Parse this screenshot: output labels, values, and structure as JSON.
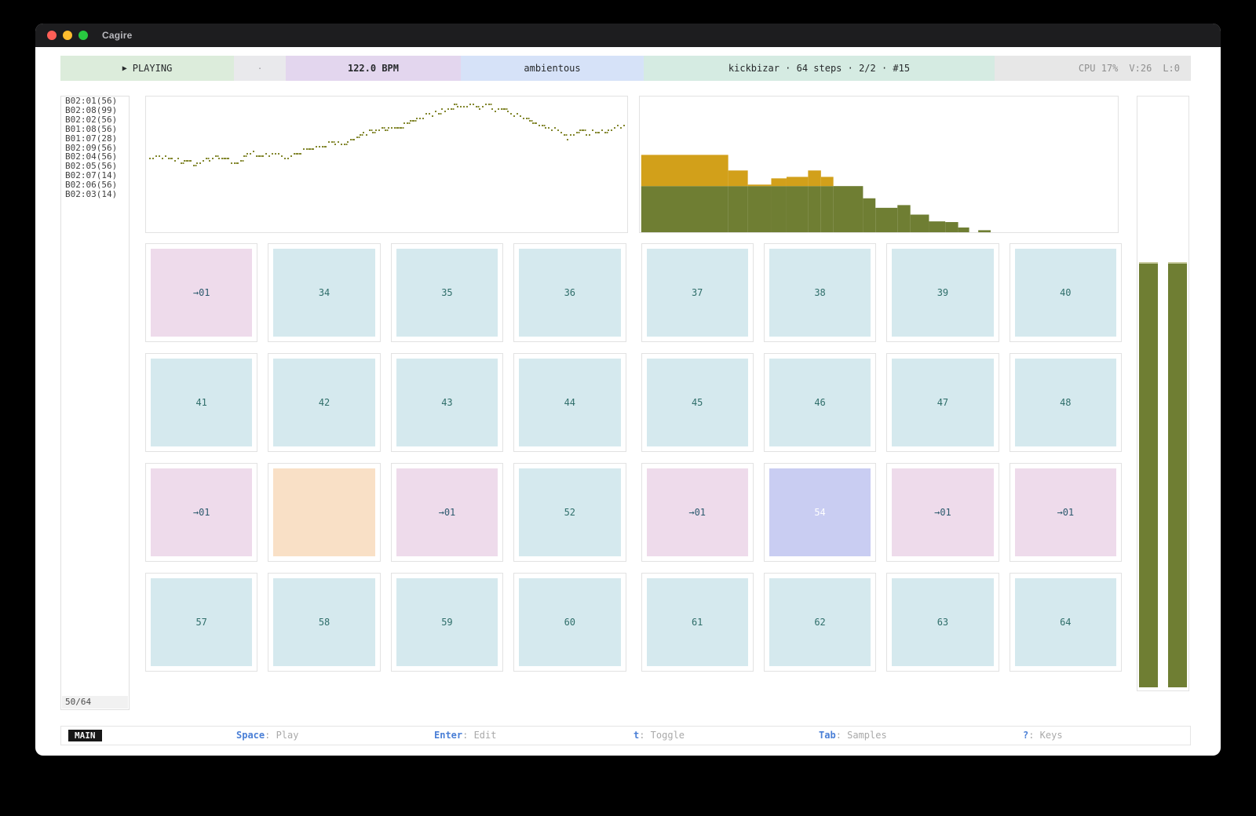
{
  "window": {
    "title": "Cagire"
  },
  "top_bar": {
    "transport": {
      "icon": "▶",
      "label": "PLAYING"
    },
    "record_dot": "·",
    "bpm": "122.0 BPM",
    "pack": "ambientous",
    "pattern": "kickbizar · 64 steps · 2/2 · #15",
    "cpu": "CPU 17%",
    "voices": "V:26",
    "latency": "L:0"
  },
  "sidebar": {
    "items": [
      "B02:01(56)",
      "B02:08(99)",
      "B02:02(56)",
      "B01:08(56)",
      "B01:07(28)",
      "B02:09(56)",
      "B02:04(56)",
      "B02:05(56)",
      "B02:07(14)",
      "B02:06(56)",
      "B02:03(14)"
    ],
    "counter": "50/64"
  },
  "grid": {
    "cells": [
      {
        "label": "→01",
        "type": "jump"
      },
      {
        "label": "34",
        "type": "step"
      },
      {
        "label": "35",
        "type": "step"
      },
      {
        "label": "36",
        "type": "step"
      },
      {
        "label": "37",
        "type": "step"
      },
      {
        "label": "38",
        "type": "step"
      },
      {
        "label": "39",
        "type": "step"
      },
      {
        "label": "40",
        "type": "step"
      },
      {
        "label": "41",
        "type": "step"
      },
      {
        "label": "42",
        "type": "step"
      },
      {
        "label": "43",
        "type": "step"
      },
      {
        "label": "44",
        "type": "step"
      },
      {
        "label": "45",
        "type": "step"
      },
      {
        "label": "46",
        "type": "step"
      },
      {
        "label": "47",
        "type": "step"
      },
      {
        "label": "48",
        "type": "step"
      },
      {
        "label": "→01",
        "type": "jump"
      },
      {
        "label": "",
        "type": "accent"
      },
      {
        "label": "→01",
        "type": "jump"
      },
      {
        "label": "52",
        "type": "step"
      },
      {
        "label": "→01",
        "type": "jump"
      },
      {
        "label": "54",
        "type": "cursor"
      },
      {
        "label": "→01",
        "type": "jump"
      },
      {
        "label": "→01",
        "type": "jump"
      },
      {
        "label": "57",
        "type": "step"
      },
      {
        "label": "58",
        "type": "step"
      },
      {
        "label": "59",
        "type": "step"
      },
      {
        "label": "60",
        "type": "step"
      },
      {
        "label": "61",
        "type": "step"
      },
      {
        "label": "62",
        "type": "step"
      },
      {
        "label": "63",
        "type": "step"
      },
      {
        "label": "64",
        "type": "step"
      }
    ]
  },
  "status_bar": {
    "mode": "MAIN",
    "hints": [
      {
        "key": "Space",
        "label": "Play"
      },
      {
        "key": "Enter",
        "label": "Edit"
      },
      {
        "key": "t",
        "label": "Toggle"
      },
      {
        "key": "Tab",
        "label": "Samples"
      },
      {
        "key": "?",
        "label": "Keys"
      }
    ]
  },
  "chart_data": [
    {
      "type": "scatter",
      "name": "pattern-curve",
      "x_range": [
        0,
        1
      ],
      "y_range": [
        0,
        1
      ],
      "y_is_fraction_from_top": true,
      "curve_y": [
        0.45,
        0.43,
        0.46,
        0.47,
        0.5,
        0.475,
        0.44,
        0.475,
        0.46,
        0.4,
        0.44,
        0.41,
        0.445,
        0.42,
        0.37,
        0.38,
        0.33,
        0.35,
        0.31,
        0.27,
        0.25,
        0.22,
        0.23,
        0.18,
        0.15,
        0.12,
        0.09,
        0.07,
        0.055,
        0.06,
        0.075,
        0.095,
        0.115,
        0.15,
        0.185,
        0.23,
        0.25,
        0.29,
        0.25,
        0.27,
        0.25,
        0.23,
        0.2
      ],
      "grid": false,
      "legend": false
    },
    {
      "type": "bar",
      "name": "sample-histogram",
      "stacked": true,
      "series_names": [
        "green",
        "gold"
      ],
      "bins": [
        {
          "x0": 0.003,
          "x1": 0.185,
          "green": 0.34,
          "gold": 0.23
        },
        {
          "x0": 0.185,
          "x1": 0.226,
          "green": 0.34,
          "gold": 0.115
        },
        {
          "x0": 0.226,
          "x1": 0.275,
          "green": 0.34,
          "gold": 0.011
        },
        {
          "x0": 0.275,
          "x1": 0.307,
          "green": 0.34,
          "gold": 0.057
        },
        {
          "x0": 0.307,
          "x1": 0.352,
          "green": 0.34,
          "gold": 0.068
        },
        {
          "x0": 0.352,
          "x1": 0.379,
          "green": 0.34,
          "gold": 0.115
        },
        {
          "x0": 0.379,
          "x1": 0.405,
          "green": 0.34,
          "gold": 0.068
        },
        {
          "x0": 0.405,
          "x1": 0.467,
          "green": 0.34,
          "gold": 0
        },
        {
          "x0": 0.467,
          "x1": 0.493,
          "green": 0.25,
          "gold": 0
        },
        {
          "x0": 0.493,
          "x1": 0.539,
          "green": 0.18,
          "gold": 0
        },
        {
          "x0": 0.539,
          "x1": 0.566,
          "green": 0.2,
          "gold": 0
        },
        {
          "x0": 0.566,
          "x1": 0.605,
          "green": 0.13,
          "gold": 0
        },
        {
          "x0": 0.605,
          "x1": 0.639,
          "green": 0.08,
          "gold": 0
        },
        {
          "x0": 0.639,
          "x1": 0.666,
          "green": 0.075,
          "gold": 0
        },
        {
          "x0": 0.666,
          "x1": 0.689,
          "green": 0.035,
          "gold": 0
        },
        {
          "x0": 0.708,
          "x1": 0.734,
          "green": 0.015,
          "gold": 0
        }
      ]
    },
    {
      "type": "meter",
      "name": "level-meters",
      "values": [
        0.72,
        0.72
      ]
    }
  ],
  "colors": {
    "accent_green": "#6f7e33",
    "accent_gold": "#d2a01a",
    "dot_olive": "#83872e",
    "seg_green": "#dcecdb",
    "seg_purple": "#e3d6ee",
    "seg_blue": "#d6e2f8",
    "seg_mint": "#d5ebe2",
    "cell_cyan": "#d5e9ee",
    "cell_pink": "#eedbeb",
    "cell_orange": "#f9e0c6",
    "cell_lavender": "#c9cdf2",
    "key_blue": "#4a7fd6"
  }
}
